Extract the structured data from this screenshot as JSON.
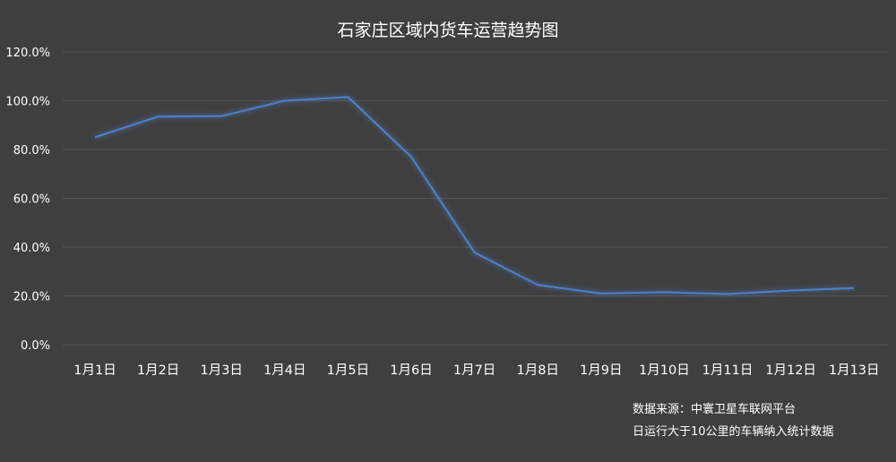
{
  "chart_data": {
    "type": "line",
    "title": "石家庄区域内货车运营趋势图",
    "xlabel": "",
    "ylabel": "",
    "categories": [
      "1月1日",
      "1月2日",
      "1月3日",
      "1月4日",
      "1月5日",
      "1月6日",
      "1月7日",
      "1月8日",
      "1月9日",
      "1月10日",
      "1月11日",
      "1月12日",
      "1月13日"
    ],
    "series": [
      {
        "values": [
          85.0,
          93.5,
          93.7,
          100.0,
          101.5,
          77.0,
          37.8,
          24.5,
          21.0,
          21.5,
          20.8,
          22.2,
          23.2
        ]
      }
    ],
    "y_ticks": [
      "0.0%",
      "20.0%",
      "40.0%",
      "60.0%",
      "80.0%",
      "100.0%",
      "120.0%"
    ],
    "ylim": [
      0,
      120
    ],
    "grid": true,
    "line_color": "#4f7fc7",
    "background_color": "#3f3f3f",
    "notes": [
      "数据来源：中寰卫星车联网平台",
      "日运行大于10公里的车辆纳入统计数据"
    ]
  }
}
